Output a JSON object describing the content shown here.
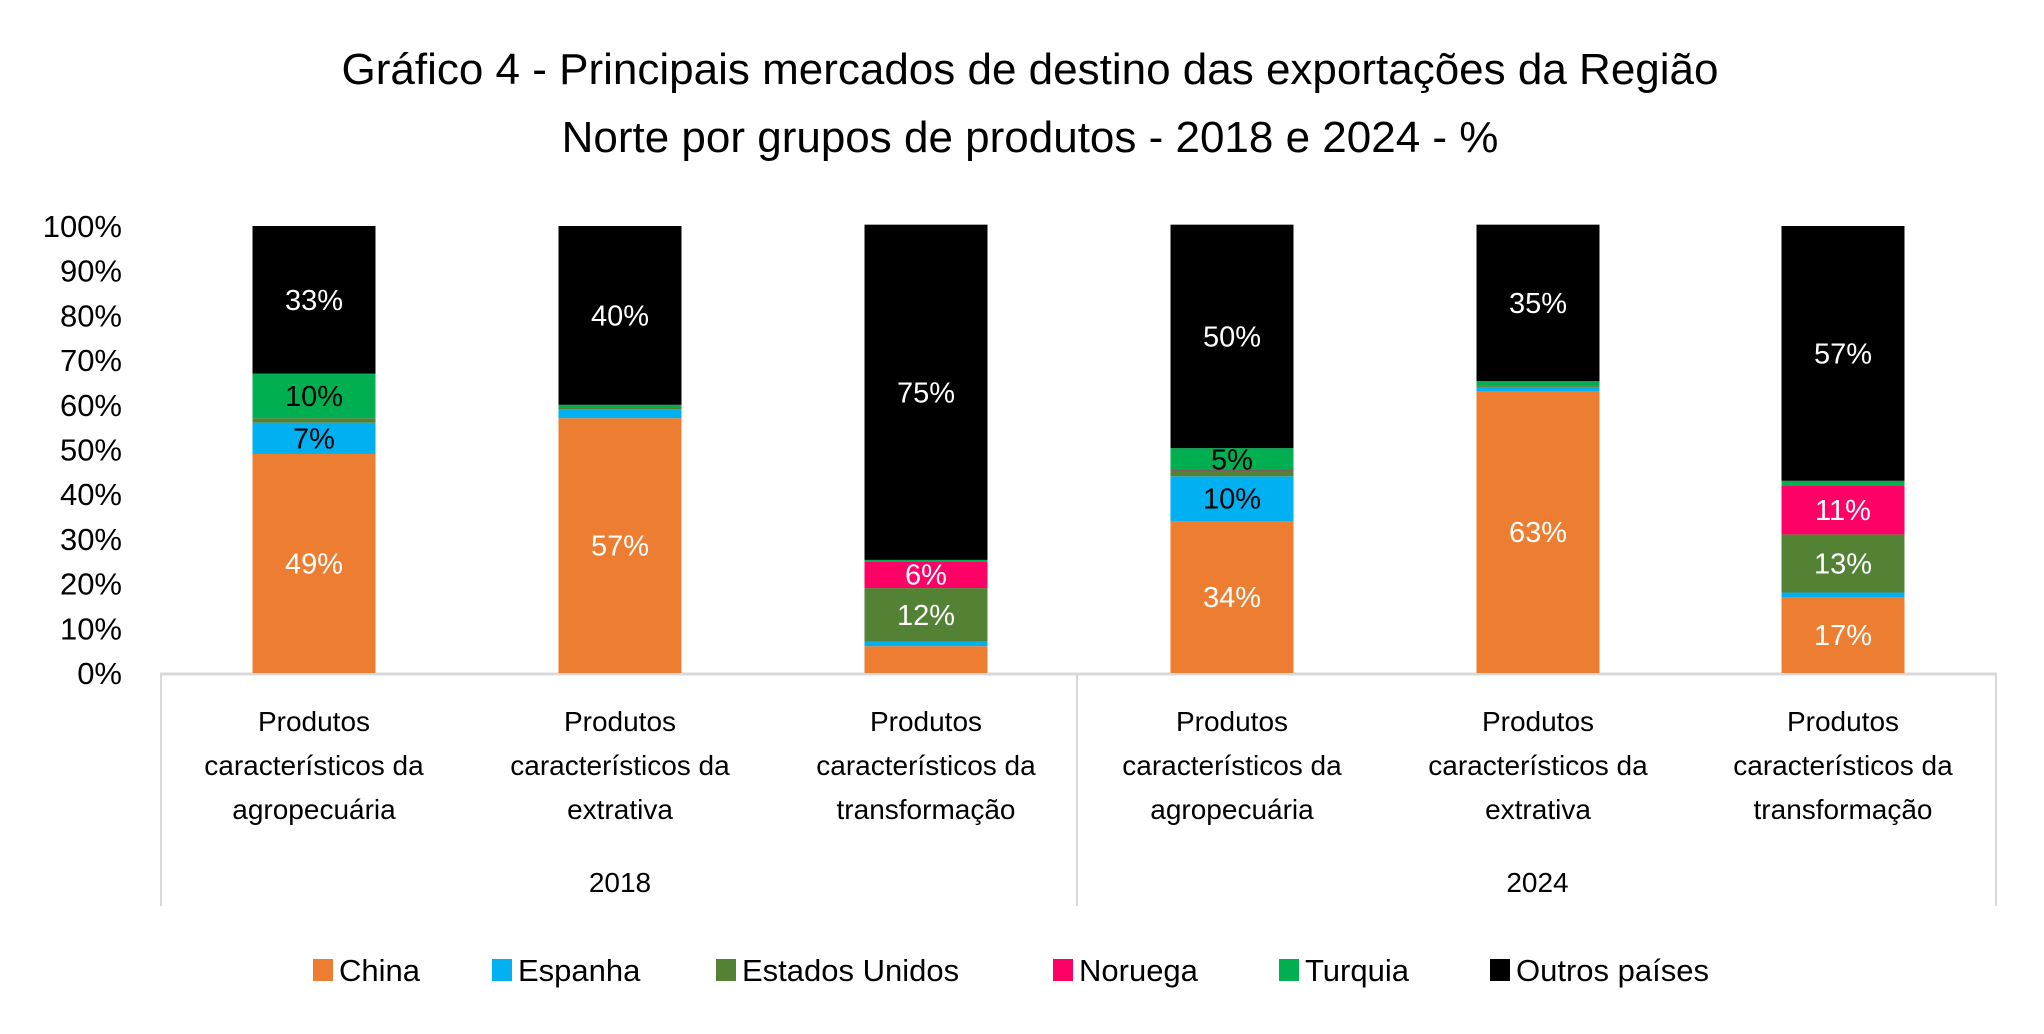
{
  "chart_data": {
    "type": "bar",
    "stacked": true,
    "title": "Gráfico 4 - Principais mercados de destino das exportações da Região Norte por grupos de produtos - 2018 e 2024 - %",
    "title_lines": [
      "Gráfico 4 - Principais mercados de destino das exportações da Região",
      "Norte por grupos de produtos - 2018 e 2024 - %"
    ],
    "xlabel": "",
    "ylabel": "",
    "ylim": [
      0,
      100
    ],
    "yticks": [
      "0%",
      "10%",
      "20%",
      "30%",
      "40%",
      "50%",
      "60%",
      "70%",
      "80%",
      "90%",
      "100%"
    ],
    "grid": false,
    "legend_position": "bottom",
    "groups": [
      {
        "label": "2018",
        "categories": [
          0,
          1,
          2
        ]
      },
      {
        "label": "2024",
        "categories": [
          3,
          4,
          5
        ]
      }
    ],
    "categories": [
      {
        "lines": [
          "Produtos",
          "característicos da",
          "agropecuária"
        ],
        "group": "2018"
      },
      {
        "lines": [
          "Produtos",
          "característicos da",
          "extrativa"
        ],
        "group": "2018"
      },
      {
        "lines": [
          "Produtos",
          "característicos da",
          "transformação"
        ],
        "group": "2018"
      },
      {
        "lines": [
          "Produtos",
          "característicos da",
          "agropecuária"
        ],
        "group": "2024"
      },
      {
        "lines": [
          "Produtos",
          "característicos da",
          "extrativa"
        ],
        "group": "2024"
      },
      {
        "lines": [
          "Produtos",
          "característicos da",
          "transformação"
        ],
        "group": "2024"
      }
    ],
    "series": [
      {
        "name": "China",
        "color": "#ED7D31",
        "label_color": "#FFFFFF",
        "values": [
          49,
          57,
          6,
          34,
          63,
          17
        ],
        "labels": [
          "49%",
          "57%",
          "",
          "34%",
          "63%",
          "17%"
        ]
      },
      {
        "name": "Espanha",
        "color": "#00B0F0",
        "label_color": "#000000",
        "values": [
          7,
          2,
          1,
          10,
          1,
          1
        ],
        "labels": [
          "7%",
          "",
          "",
          "10%",
          "",
          ""
        ]
      },
      {
        "name": "Estados Unidos",
        "color": "#548235",
        "label_color": "#FFFFFF",
        "values": [
          1,
          0.5,
          12,
          1,
          0.3,
          13
        ],
        "labels": [
          "",
          "",
          "12%",
          "",
          "",
          "13%"
        ]
      },
      {
        "name": "Noruega",
        "color": "#FF0066",
        "label_color": "#FFFFFF",
        "values": [
          0,
          0,
          6,
          0.3,
          0,
          11
        ],
        "labels": [
          "",
          "",
          "6%",
          "",
          "",
          "11%"
        ]
      },
      {
        "name": "Turquia",
        "color": "#00B050",
        "label_color": "#000000",
        "values": [
          10,
          0.5,
          0.3,
          5,
          1,
          1
        ],
        "labels": [
          "10%",
          "",
          "",
          "5%",
          "",
          ""
        ]
      },
      {
        "name": "Outros países",
        "color": "#000000",
        "label_color": "#FFFFFF",
        "values": [
          33,
          40,
          75,
          50,
          35,
          57
        ],
        "labels": [
          "33%",
          "40%",
          "75%",
          "50%",
          "35%",
          "57%"
        ]
      }
    ]
  }
}
